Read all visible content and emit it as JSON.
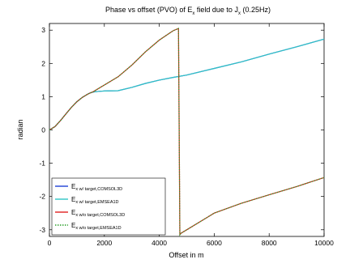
{
  "chart_data": {
    "type": "line",
    "title": {
      "prefix": "Phase vs offset (PVO) of E",
      "sub1": "x",
      "middle": " field due to J",
      "sub2": "x",
      "suffix": " (0.25Hz)"
    },
    "xlabel": "Offset in m",
    "ylabel": "radian",
    "xlim": [
      0,
      10000
    ],
    "ylim": [
      -3.2,
      3.2
    ],
    "xticks": [
      0,
      2000,
      4000,
      6000,
      8000,
      10000
    ],
    "yticks": [
      -3,
      -2,
      -1,
      0,
      1,
      2,
      3
    ],
    "grid": false,
    "legend_position": "bottom-left",
    "series": [
      {
        "base": "E",
        "sub": "x w/ target,COMSOL3D",
        "color": "#1f3fd6",
        "dash": "solid",
        "x": [
          0,
          200,
          400,
          600,
          800,
          1000,
          1200,
          1400,
          1500,
          1600,
          1800,
          2000,
          2500,
          3000,
          3500,
          4000,
          4500,
          5000,
          6000,
          7000,
          8000,
          9000,
          10000
        ],
        "y": [
          0,
          0.1,
          0.28,
          0.48,
          0.68,
          0.85,
          0.98,
          1.08,
          1.12,
          1.14,
          1.16,
          1.17,
          1.18,
          1.28,
          1.4,
          1.5,
          1.58,
          1.65,
          1.85,
          2.05,
          2.28,
          2.5,
          2.73
        ]
      },
      {
        "base": "E",
        "sub": "x w/ target,EMSEA1D",
        "color": "#2ec4c4",
        "dash": "solid",
        "x": [
          0,
          200,
          400,
          600,
          800,
          1000,
          1200,
          1400,
          1500,
          1600,
          1800,
          2000,
          2500,
          3000,
          3500,
          4000,
          4500,
          5000,
          6000,
          7000,
          8000,
          9000,
          10000
        ],
        "y": [
          0,
          0.1,
          0.28,
          0.48,
          0.68,
          0.85,
          0.98,
          1.08,
          1.12,
          1.14,
          1.16,
          1.17,
          1.18,
          1.28,
          1.4,
          1.5,
          1.58,
          1.65,
          1.85,
          2.05,
          2.28,
          2.5,
          2.73
        ]
      },
      {
        "base": "E",
        "sub": "x w/o target,COMSOL3D",
        "color": "#e02020",
        "dash": "solid",
        "x": [
          0,
          200,
          400,
          600,
          800,
          1000,
          1200,
          1400,
          1600,
          2000,
          2500,
          3000,
          3500,
          4000,
          4500,
          4700,
          4750,
          4800,
          5000,
          5500,
          6000,
          7000,
          8000,
          9000,
          10000
        ],
        "y": [
          0,
          0.1,
          0.28,
          0.48,
          0.68,
          0.85,
          0.98,
          1.08,
          1.15,
          1.35,
          1.6,
          1.95,
          2.35,
          2.7,
          2.98,
          3.05,
          -3.15,
          -3.1,
          -3.0,
          -2.75,
          -2.5,
          -2.2,
          -1.95,
          -1.7,
          -1.43
        ]
      },
      {
        "base": "E",
        "sub": "x w/o target,EMSEA1D",
        "color": "#2ca02c",
        "dash": "dotted",
        "x": [
          0,
          200,
          400,
          600,
          800,
          1000,
          1200,
          1400,
          1600,
          2000,
          2500,
          3000,
          3500,
          4000,
          4500,
          4700,
          4750,
          4800,
          5000,
          5500,
          6000,
          7000,
          8000,
          9000,
          10000
        ],
        "y": [
          0,
          0.1,
          0.28,
          0.48,
          0.68,
          0.85,
          0.98,
          1.08,
          1.15,
          1.35,
          1.6,
          1.95,
          2.35,
          2.7,
          2.98,
          3.05,
          -3.15,
          -3.1,
          -3.0,
          -2.75,
          -2.5,
          -2.2,
          -1.95,
          -1.7,
          -1.43
        ]
      }
    ]
  }
}
